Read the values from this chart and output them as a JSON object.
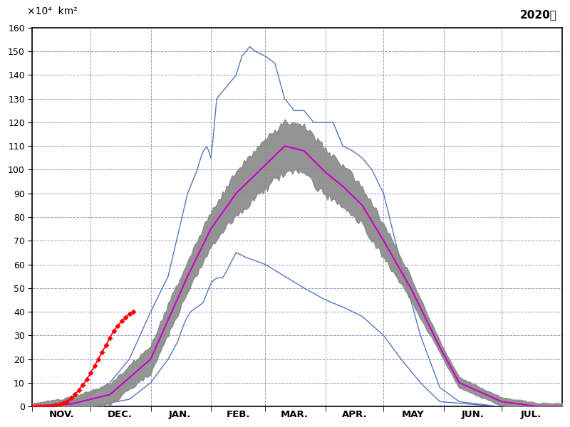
{
  "title_unit": "×10⁴  km²",
  "title_year": "2020年",
  "ylim": [
    0,
    160
  ],
  "yticks": [
    0,
    10,
    20,
    30,
    40,
    50,
    60,
    70,
    80,
    90,
    100,
    110,
    120,
    130,
    140,
    150,
    160
  ],
  "month_labels": [
    "NOV.",
    "DEC.",
    "JAN.",
    "FEB.",
    "MAR.",
    "APR.",
    "MAY",
    "JUN.",
    "JUL."
  ],
  "background_color": "#ffffff",
  "grid_color": "#9999cc",
  "band_color": "#888888",
  "mean_color": "#cc00cc",
  "minmax_color": "#5577bb",
  "obs_color": "#ff0000",
  "obs_dot_color": "#ff0000"
}
